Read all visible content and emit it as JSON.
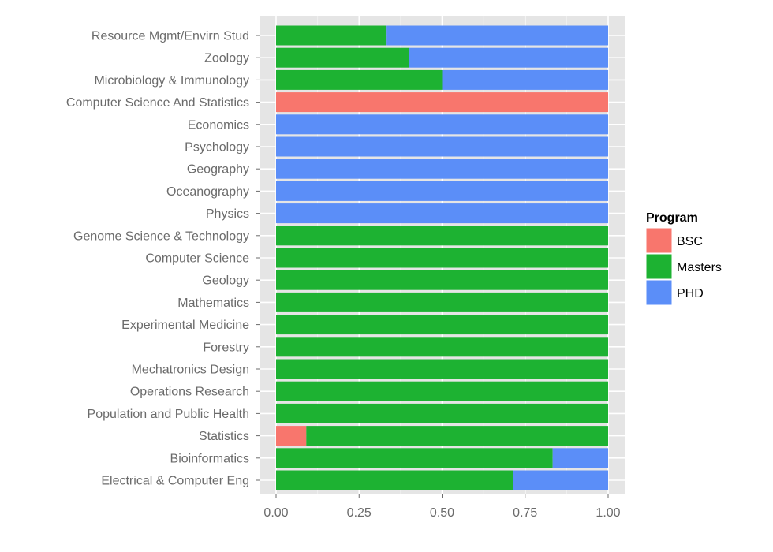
{
  "chart_data": {
    "type": "bar",
    "orientation": "horizontal",
    "stacked": "proportional",
    "categories": [
      "Resource Mgmt/Envirn Stud",
      "Zoology",
      "Microbiology & Immunology",
      "Computer Science And Statistics",
      "Economics",
      "Psychology",
      "Geography",
      "Oceanography",
      "Physics",
      "Genome Science & Technology",
      "Computer Science",
      "Geology",
      "Mathematics",
      "Experimental Medicine",
      "Forestry",
      "Mechatronics Design",
      "Operations Research",
      "Population and Public Health",
      "Statistics",
      "Bioinformatics",
      "Electrical & Computer Eng"
    ],
    "series": [
      {
        "name": "BSC",
        "color": "#F8766D",
        "values": [
          0,
          0,
          0,
          1,
          0,
          0,
          0,
          0,
          0,
          0,
          0,
          0,
          0,
          0,
          0,
          0,
          0,
          0,
          0.091,
          0,
          0
        ]
      },
      {
        "name": "Masters",
        "color": "#1DB232",
        "values": [
          0.333,
          0.4,
          0.5,
          0,
          0,
          0,
          0,
          0,
          0,
          1,
          1,
          1,
          1,
          1,
          1,
          1,
          1,
          1,
          0.909,
          0.833,
          0.714
        ]
      },
      {
        "name": "PHD",
        "color": "#5B8EF8",
        "values": [
          0.667,
          0.6,
          0.5,
          0,
          1,
          1,
          1,
          1,
          1,
          0,
          0,
          0,
          0,
          0,
          0,
          0,
          0,
          0,
          0,
          0.167,
          0.286
        ]
      }
    ],
    "xlim": [
      0,
      1
    ],
    "xticks": [
      "0.00",
      "0.25",
      "0.50",
      "0.75",
      "1.00"
    ],
    "xlabel": "",
    "ylabel": "",
    "grid": true,
    "panel_background": "#E5E5E5",
    "legend": {
      "title": "Program",
      "position": "right"
    }
  }
}
